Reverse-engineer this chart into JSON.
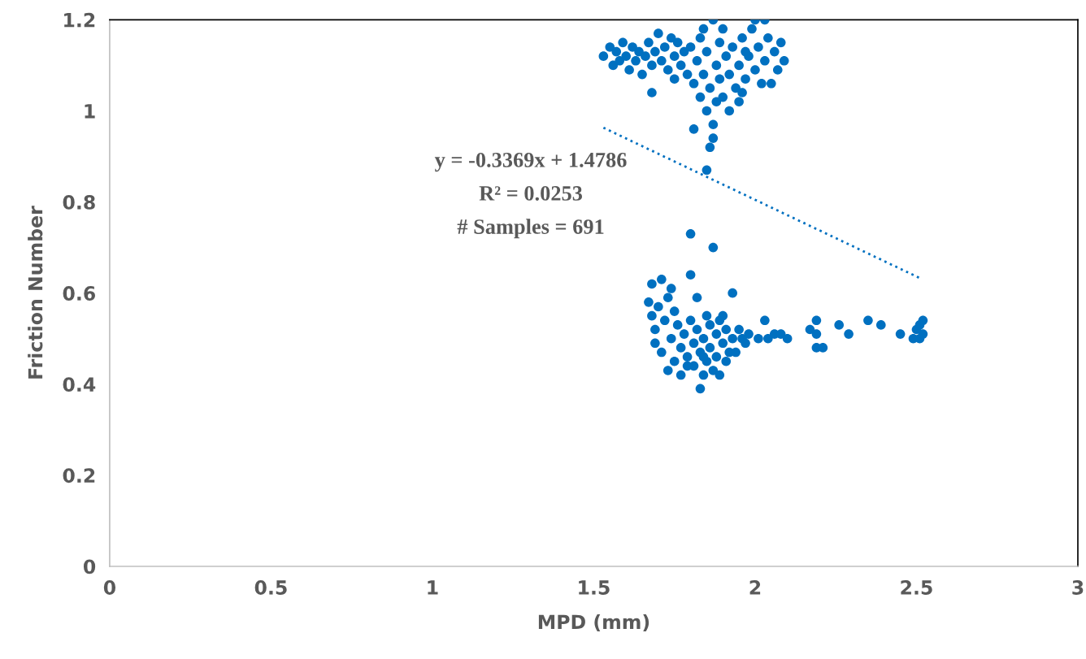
{
  "chart_data": {
    "type": "scatter",
    "xlabel": "MPD (mm)",
    "ylabel": "Friction Number",
    "xlim": [
      0,
      3
    ],
    "xticks": [
      0,
      0.5,
      1,
      1.5,
      2,
      2.5,
      3
    ],
    "ylim": [
      0,
      1.2
    ],
    "yticks": [
      0,
      0.2,
      0.4,
      0.6,
      0.8,
      1,
      1.2
    ],
    "grid": false,
    "legend": false,
    "annotations": [
      "y = -0.3369x + 1.4786",
      "R² = 0.0253",
      "# Samples = 691"
    ],
    "series": [
      {
        "color": "#0070c0",
        "marker": "circle",
        "x": [
          1.53,
          1.55,
          1.56,
          1.57,
          1.58,
          1.59,
          1.6,
          1.61,
          1.62,
          1.63,
          1.64,
          1.65,
          1.66,
          1.67,
          1.68,
          1.68,
          1.69,
          1.7,
          1.71,
          1.72,
          1.73,
          1.74,
          1.75,
          1.76,
          1.77,
          1.78,
          1.79,
          1.8,
          1.81,
          1.81,
          1.82,
          1.83,
          1.83,
          1.84,
          1.84,
          1.85,
          1.85,
          1.86,
          1.86,
          1.87,
          1.87,
          1.87,
          1.88,
          1.88,
          1.89,
          1.89,
          1.9,
          1.9,
          1.91,
          1.92,
          1.92,
          1.93,
          1.94,
          1.95,
          1.95,
          1.96,
          1.97,
          1.98,
          1.99,
          2.0,
          2.0,
          2.01,
          2.02,
          2.03,
          2.03,
          2.04,
          2.05,
          2.06,
          2.07,
          2.08,
          2.09,
          1.85,
          1.96,
          1.97,
          1.75,
          1.67,
          1.68,
          1.68,
          1.69,
          1.69,
          1.7,
          1.71,
          1.71,
          1.72,
          1.73,
          1.73,
          1.74,
          1.74,
          1.75,
          1.75,
          1.76,
          1.77,
          1.77,
          1.78,
          1.79,
          1.8,
          1.8,
          1.8,
          1.81,
          1.81,
          1.82,
          1.82,
          1.83,
          1.83,
          1.84,
          1.84,
          1.85,
          1.85,
          1.86,
          1.86,
          1.87,
          1.87,
          1.88,
          1.88,
          1.89,
          1.89,
          1.9,
          1.9,
          1.91,
          1.91,
          1.92,
          1.93,
          1.93,
          1.94,
          1.95,
          1.96,
          1.97,
          1.98,
          2.01,
          2.03,
          2.04,
          2.06,
          2.08,
          2.1,
          2.17,
          2.19,
          2.19,
          2.19,
          2.21,
          2.26,
          2.29,
          2.35,
          2.39,
          2.45,
          2.49,
          2.5,
          2.51,
          2.51,
          2.52,
          2.52,
          1.79,
          1.84
        ],
        "values": [
          1.12,
          1.14,
          1.1,
          1.13,
          1.11,
          1.15,
          1.12,
          1.09,
          1.14,
          1.11,
          1.13,
          1.08,
          1.12,
          1.15,
          1.1,
          1.04,
          1.13,
          1.17,
          1.11,
          1.14,
          1.09,
          1.16,
          1.12,
          1.15,
          1.1,
          1.13,
          1.08,
          1.14,
          1.06,
          0.96,
          1.11,
          1.16,
          1.03,
          1.18,
          1.08,
          1.13,
          1.0,
          0.92,
          1.05,
          1.2,
          0.97,
          0.94,
          1.1,
          1.02,
          1.15,
          1.07,
          1.18,
          1.03,
          1.12,
          1.08,
          1.0,
          1.14,
          1.05,
          1.1,
          1.02,
          1.16,
          1.07,
          1.12,
          1.18,
          1.2,
          1.09,
          1.14,
          1.06,
          1.2,
          1.11,
          1.16,
          1.06,
          1.13,
          1.09,
          1.15,
          1.11,
          0.87,
          1.04,
          1.13,
          1.07,
          0.58,
          0.62,
          0.55,
          0.52,
          0.49,
          0.57,
          0.63,
          0.47,
          0.54,
          0.59,
          0.43,
          0.61,
          0.5,
          0.56,
          0.45,
          0.53,
          0.48,
          0.42,
          0.51,
          0.46,
          0.73,
          0.64,
          0.54,
          0.44,
          0.49,
          0.59,
          0.52,
          0.39,
          0.47,
          0.42,
          0.5,
          0.55,
          0.45,
          0.48,
          0.53,
          0.7,
          0.43,
          0.51,
          0.46,
          0.54,
          0.42,
          0.49,
          0.55,
          0.45,
          0.52,
          0.47,
          0.6,
          0.5,
          0.47,
          0.52,
          0.5,
          0.49,
          0.51,
          0.5,
          0.54,
          0.5,
          0.51,
          0.51,
          0.5,
          0.52,
          0.54,
          0.51,
          0.48,
          0.48,
          0.53,
          0.51,
          0.54,
          0.53,
          0.51,
          0.5,
          0.52,
          0.53,
          0.5,
          0.54,
          0.51,
          0.44,
          0.46
        ]
      },
      {
        "type": "line",
        "color": "#0070c0",
        "marker": "none",
        "line_style": "dotted",
        "x": [
          1.53,
          2.51
        ],
        "values": [
          0.963,
          0.633
        ]
      }
    ]
  }
}
